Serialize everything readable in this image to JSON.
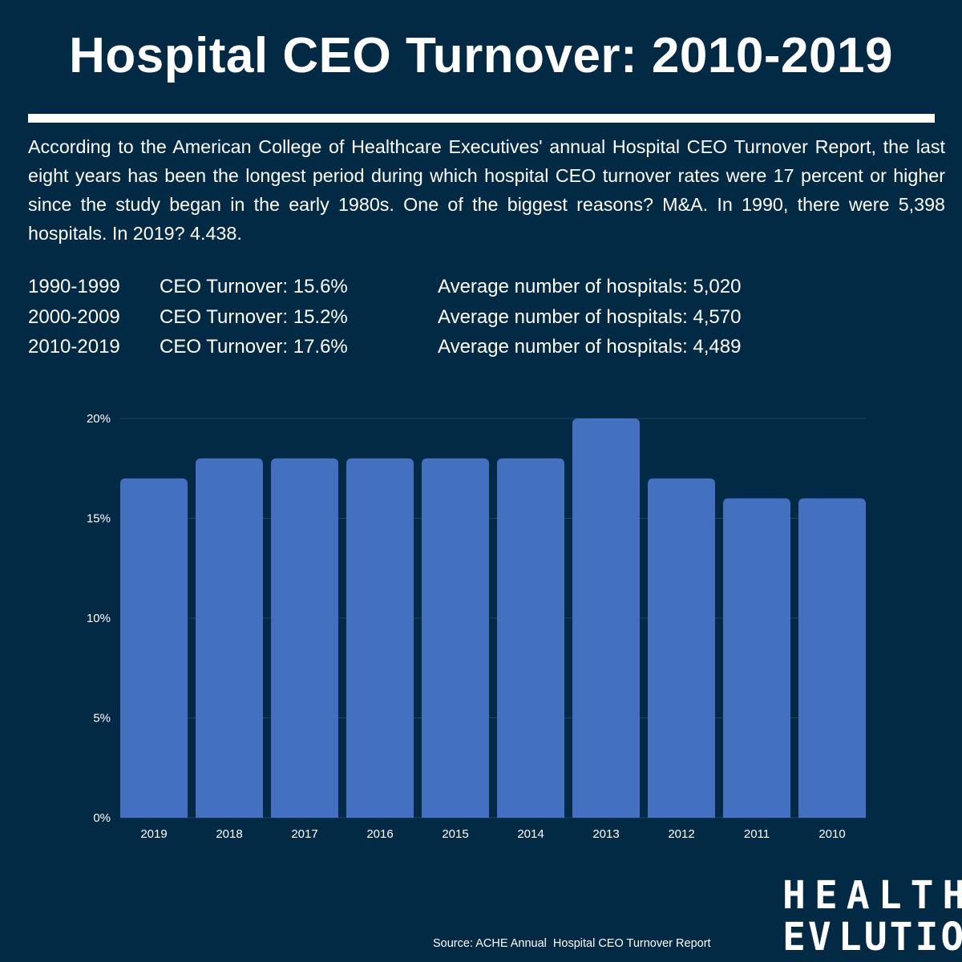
{
  "title": "Hospital CEO Turnover: 2010-2019",
  "intro": "According to the American College of Healthcare Executives' annual Hospital CEO Turnover Report, the last eight years has been the longest period during which hospital CEO turnover rates were 17 percent or higher since the study began in the early 1980s. One of the biggest reasons? M&A.  In 1990, there were 5,398 hospitals. In 2019? 4.438.",
  "stats": [
    {
      "period": "1990-1999",
      "turnover": "CEO Turnover: 15.6%",
      "hospitals": "Average number of hospitals: 5,020"
    },
    {
      "period": "2000-2009",
      "turnover": "CEO Turnover: 15.2%",
      "hospitals": "Average number of hospitals: 4,570"
    },
    {
      "period": "2010-2019",
      "turnover": "CEO Turnover: 17.6%",
      "hospitals": "Average number of hospitals: 4,489"
    }
  ],
  "chart_data": {
    "type": "bar",
    "categories": [
      "2019",
      "2018",
      "2017",
      "2016",
      "2015",
      "2014",
      "2013",
      "2012",
      "2011",
      "2010"
    ],
    "values": [
      17,
      18,
      18,
      18,
      18,
      18,
      20,
      17,
      16,
      16
    ],
    "ylim": [
      0,
      20
    ],
    "yticks": [
      0,
      5,
      10,
      15,
      20
    ],
    "ytick_labels": [
      "0%",
      "5%",
      "10%",
      "15%",
      "20%"
    ],
    "grid": true,
    "bar_color": "#4470c2",
    "grid_color": "#1d4763"
  },
  "logo": {
    "line1": "HEALTH",
    "line2_left": "EV",
    "line2_right": "LUTION",
    "accent_colors": [
      "#2fa9d6",
      "#7cc04a",
      "#f0c419"
    ]
  },
  "source": "Source: ACHE Annual  Hospital CEO Turnover Report",
  "colors": {
    "background": "#022a45",
    "text": "#ffffff"
  }
}
